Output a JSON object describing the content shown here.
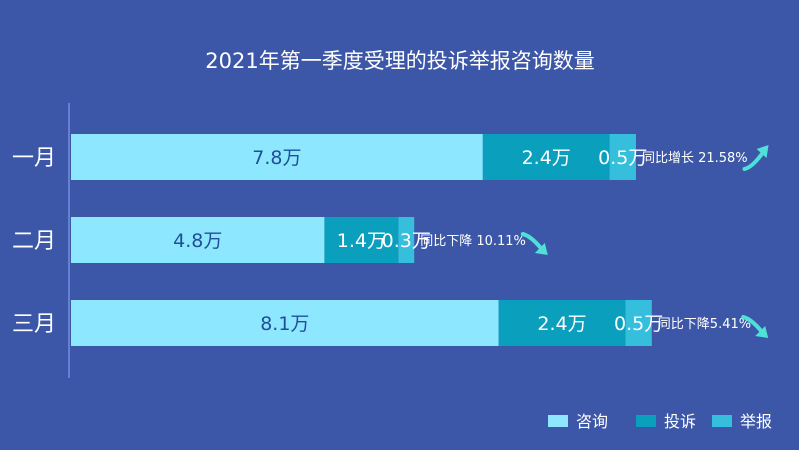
{
  "chart_data": {
    "type": "bar",
    "orientation": "horizontal",
    "stacked": true,
    "title": "2021年第一季度受理的投诉举报咨询数量",
    "categories": [
      "一月",
      "二月",
      "三月"
    ],
    "unit": "万",
    "series": [
      {
        "name": "咨询",
        "values": [
          7.8,
          4.8,
          8.1
        ],
        "color": "#8de8ff",
        "label_color": "#1f4f9a"
      },
      {
        "name": "投诉",
        "values": [
          2.4,
          1.4,
          2.4
        ],
        "color": "#0a9fbd",
        "label_color": "#ffffff"
      },
      {
        "name": "举报",
        "values": [
          0.5,
          0.3,
          0.5
        ],
        "color": "#35bfdc",
        "label_color": "#ffffff"
      }
    ],
    "data_labels": [
      [
        "7.8万",
        "2.4万",
        "0.5万"
      ],
      [
        "4.8万",
        "1.4万",
        "0.3万"
      ],
      [
        "8.1万",
        "2.4万",
        "0.5万"
      ]
    ],
    "annotations": [
      {
        "text": "同比增长 21.58%",
        "direction": "up"
      },
      {
        "text": "同比下降 10.11%",
        "direction": "down"
      },
      {
        "text": "同比下降5.41%",
        "direction": "down"
      }
    ],
    "legend_position": "bottom-right",
    "grid": false,
    "colors": {
      "background": "#3d57a8",
      "axis": "#6f8fe0",
      "text": "#ffffff",
      "arrow": "#4fe0d8"
    }
  }
}
